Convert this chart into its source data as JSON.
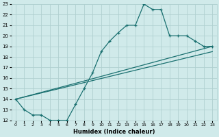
{
  "title": "",
  "xlabel": "Humidex (Indice chaleur)",
  "xlim": [
    -0.5,
    23.5
  ],
  "ylim": [
    12,
    23
  ],
  "xticks": [
    0,
    1,
    2,
    3,
    4,
    5,
    6,
    7,
    8,
    9,
    10,
    11,
    12,
    13,
    14,
    15,
    16,
    17,
    18,
    19,
    20,
    21,
    22,
    23
  ],
  "yticks": [
    12,
    13,
    14,
    15,
    16,
    17,
    18,
    19,
    20,
    21,
    22,
    23
  ],
  "background_color": "#d0eaea",
  "grid_color": "#b0d0d0",
  "line_color": "#1a7070",
  "curve_x": [
    0,
    1,
    2,
    3,
    4,
    5,
    6,
    7,
    8,
    9,
    10,
    11,
    12,
    13,
    14,
    15,
    16,
    17,
    18,
    19,
    20,
    21,
    22,
    23
  ],
  "curve_y": [
    14,
    13,
    12.5,
    12.5,
    12,
    12,
    12,
    13.5,
    15,
    16.5,
    18.5,
    19.5,
    20.3,
    21.0,
    21.0,
    23.0,
    22.5,
    22.5,
    20.0,
    20.0,
    20.0,
    19.5,
    19.0,
    19.0
  ],
  "line2_x": [
    0,
    23
  ],
  "line2_y": [
    14.0,
    18.5
  ],
  "line3_x": [
    0,
    7,
    23
  ],
  "line3_y": [
    14.0,
    15.5,
    19.0
  ]
}
